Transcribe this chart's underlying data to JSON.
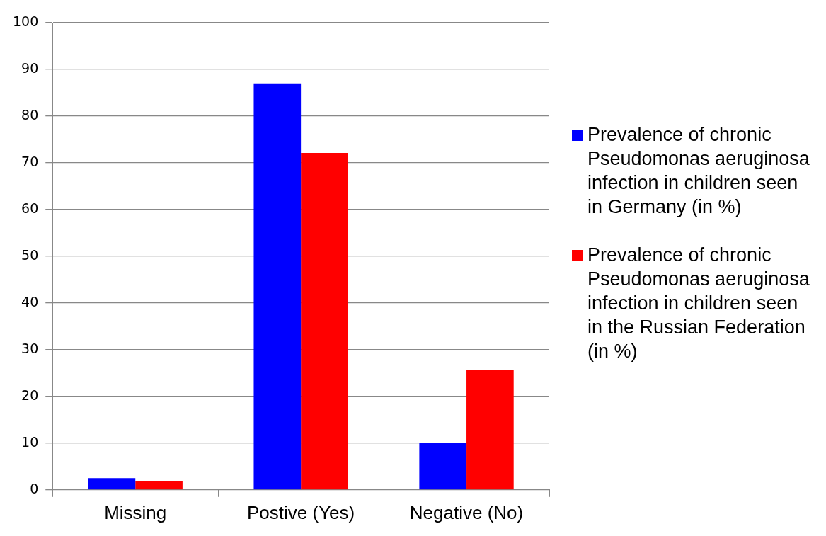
{
  "chart_data": {
    "type": "bar",
    "categories": [
      "Missing",
      "Postive (Yes)",
      "Negative (No)"
    ],
    "series": [
      {
        "name": "Prevalence of chronic Pseudomonas aeruginosa infection in children seen in Germany (in %)",
        "color": "#0000ff",
        "values": [
          2.5,
          87,
          10.1
        ]
      },
      {
        "name": "Prevalence of chronic Pseudomonas aeruginosa infection in children seen in the Russian Federation (in %)",
        "color": "#ff0000",
        "values": [
          1.8,
          72.1,
          25.6
        ]
      }
    ],
    "ylim": [
      0,
      100
    ],
    "yticks": [
      0,
      10,
      20,
      30,
      40,
      50,
      60,
      70,
      80,
      90,
      100
    ],
    "grid": "y",
    "legend": "right"
  }
}
